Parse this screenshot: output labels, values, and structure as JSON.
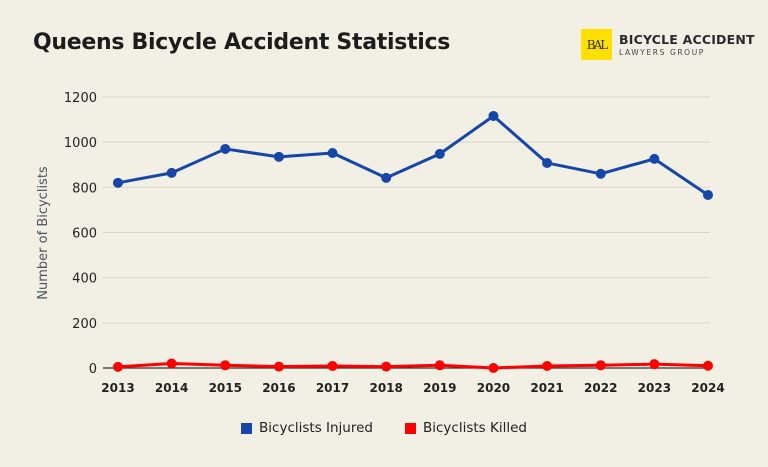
{
  "header": {
    "title": "Queens Bicycle Accident Statistics"
  },
  "logo": {
    "mark": "BAL",
    "line1": "BICYCLE ACCIDENT",
    "line2": "LAWYERS GROUP",
    "color": "#ffe000"
  },
  "chart_data": {
    "type": "line",
    "title": "Queens Bicycle Accident Statistics",
    "xlabel": "",
    "ylabel": "Number of Bicyclists",
    "ylim": [
      0,
      1200
    ],
    "yticks": [
      0,
      200,
      400,
      600,
      800,
      1000,
      1200
    ],
    "grid": true,
    "legend": "bottom",
    "categories": [
      "2013",
      "2014",
      "2015",
      "2016",
      "2017",
      "2018",
      "2019",
      "2020",
      "2021",
      "2022",
      "2023",
      "2024"
    ],
    "series": [
      {
        "name": "Bicyclists Injured",
        "color": "#1647a8",
        "values": [
          820,
          864,
          970,
          935,
          952,
          842,
          948,
          1116,
          908,
          860,
          926,
          766
        ]
      },
      {
        "name": "Bicyclists Killed",
        "color": "#ff0000",
        "values": [
          5,
          20,
          12,
          6,
          9,
          6,
          12,
          0,
          9,
          12,
          17,
          10
        ]
      }
    ]
  }
}
